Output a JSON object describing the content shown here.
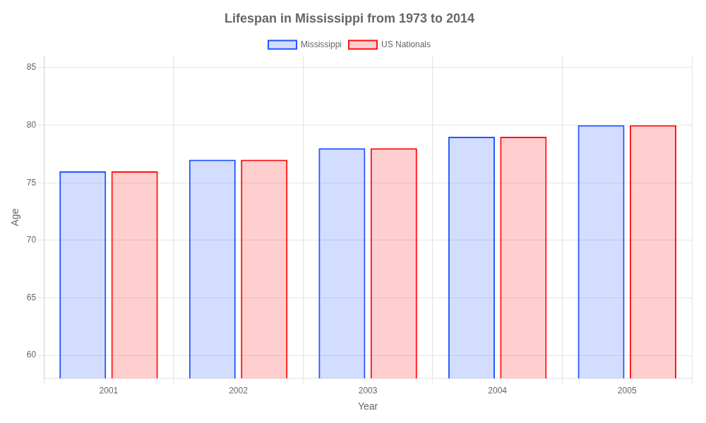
{
  "chart_data": {
    "type": "bar",
    "title": "Lifespan in Mississippi from 1973 to 2014",
    "x_label": "Year",
    "y_label": "Age",
    "categories": [
      "2001",
      "2002",
      "2003",
      "2004",
      "2005"
    ],
    "series": [
      {
        "name": "Mississippi",
        "color": "#2255ff",
        "values": [
          76.0,
          77.0,
          78.0,
          79.0,
          80.0
        ]
      },
      {
        "name": "US Nationals",
        "color": "#ff1111",
        "values": [
          76.0,
          77.0,
          78.0,
          79.0,
          80.0
        ]
      }
    ],
    "ylim": [
      58,
      86
    ],
    "yticks": [
      60,
      65,
      70,
      75,
      80,
      85
    ],
    "grid": true,
    "legend": "top"
  }
}
